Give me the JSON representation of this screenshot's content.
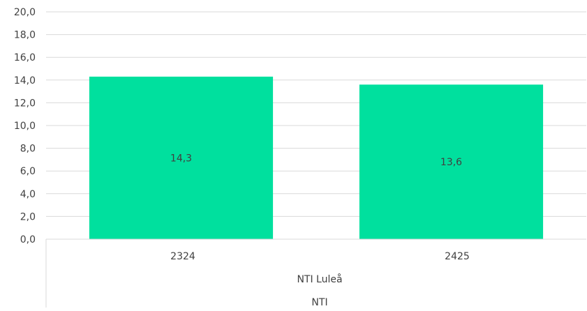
{
  "chart_data": {
    "type": "bar",
    "categories": [
      "2324",
      "2425"
    ],
    "group_levels": [
      "NTI Luleå",
      "NTI"
    ],
    "series": [
      {
        "values": [
          14.3,
          13.6
        ],
        "data_labels": [
          "14,3",
          "13,6"
        ]
      }
    ],
    "title": "",
    "xlabel": "",
    "ylabel": "",
    "ylim": [
      0,
      20
    ],
    "y_ticks": [
      "0,0",
      "2,0",
      "4,0",
      "6,0",
      "8,0",
      "10,0",
      "12,0",
      "14,0",
      "16,0",
      "18,0",
      "20,0"
    ],
    "grid": true,
    "legend": "none",
    "colors": {
      "bar": "#00e09e",
      "grid": "#d9d9d9",
      "text": "#404040"
    }
  }
}
